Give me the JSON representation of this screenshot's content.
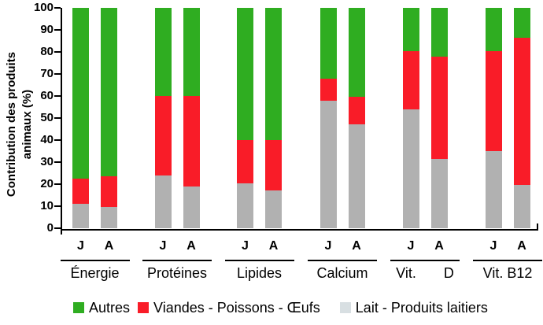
{
  "y_axis": {
    "label_line1": "Contribution des produits",
    "label_line2": "animaux (%)",
    "ticks": [
      0,
      10,
      20,
      30,
      40,
      50,
      60,
      70,
      80,
      90,
      100
    ],
    "min": 0,
    "max": 100
  },
  "bar_pair_labels": [
    "J",
    "A"
  ],
  "legend": [
    {
      "label": "Autres",
      "color": "#2fad21"
    },
    {
      "label": "Viandes - Poissons - Œufs",
      "color": "#f91c28"
    },
    {
      "label": "Lait - Produits laitiers",
      "color": "#d8dfe2"
    }
  ],
  "chart_data": {
    "type": "bar",
    "stacked": true,
    "unit": "%",
    "ylim": [
      0,
      100
    ],
    "ylabel": "Contribution des produits animaux (%)",
    "categories": [
      "Énergie",
      "Protéines",
      "Lipides",
      "Calcium",
      "Vit. D",
      "Vit. B12"
    ],
    "bar_labels": [
      "J",
      "A"
    ],
    "series_order_bottom_to_top": [
      "Lait - Produits laitiers",
      "Viandes - Poissons - Œufs",
      "Autres"
    ],
    "colors": {
      "lait": "#b1b1b1",
      "viandes_poissons_oeufs": "#f91c28",
      "autres": "#2fad21"
    },
    "groups": [
      {
        "category": "Énergie",
        "display_label": "Énergie",
        "bars": [
          {
            "label": "J",
            "values": {
              "lait": 11,
              "viandes_poissons_oeufs": 11.5,
              "autres": 77.5
            }
          },
          {
            "label": "A",
            "values": {
              "lait": 9.5,
              "viandes_poissons_oeufs": 14,
              "autres": 76.5
            }
          }
        ]
      },
      {
        "category": "Protéines",
        "display_label": "Protéines",
        "bars": [
          {
            "label": "J",
            "values": {
              "lait": 24,
              "viandes_poissons_oeufs": 36,
              "autres": 40
            }
          },
          {
            "label": "A",
            "values": {
              "lait": 19,
              "viandes_poissons_oeufs": 41,
              "autres": 40
            }
          }
        ]
      },
      {
        "category": "Lipides",
        "display_label": "Lipides",
        "bars": [
          {
            "label": "J",
            "values": {
              "lait": 20.5,
              "viandes_poissons_oeufs": 19.5,
              "autres": 60
            }
          },
          {
            "label": "A",
            "values": {
              "lait": 17,
              "viandes_poissons_oeufs": 23,
              "autres": 60
            }
          }
        ]
      },
      {
        "category": "Calcium",
        "display_label": "Calcium",
        "bars": [
          {
            "label": "J",
            "values": {
              "lait": 58,
              "viandes_poissons_oeufs": 10,
              "autres": 32
            }
          },
          {
            "label": "A",
            "values": {
              "lait": 47,
              "viandes_poissons_oeufs": 12.5,
              "autres": 40.5
            }
          }
        ]
      },
      {
        "category": "Vit. D",
        "display_label": "Vit.       D",
        "bars": [
          {
            "label": "J",
            "values": {
              "lait": 54,
              "viandes_poissons_oeufs": 26.5,
              "autres": 19.5
            }
          },
          {
            "label": "A",
            "values": {
              "lait": 31.5,
              "viandes_poissons_oeufs": 46.5,
              "autres": 22
            }
          }
        ]
      },
      {
        "category": "Vit. B12",
        "display_label": "Vit. B12",
        "bars": [
          {
            "label": "J",
            "values": {
              "lait": 35,
              "viandes_poissons_oeufs": 45.5,
              "autres": 19.5
            }
          },
          {
            "label": "A",
            "values": {
              "lait": 19.5,
              "viandes_poissons_oeufs": 67,
              "autres": 13.5
            }
          }
        ]
      }
    ]
  }
}
